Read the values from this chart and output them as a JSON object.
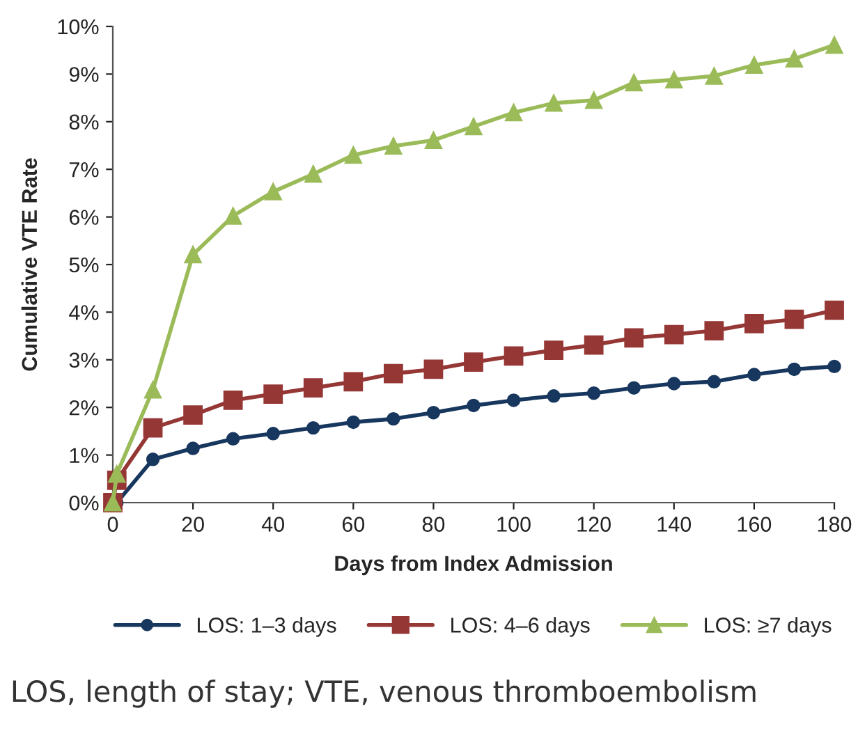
{
  "chart_data": {
    "type": "line",
    "xlabel": "Days from Index Admission",
    "ylabel": "Cumulative VTE Rate",
    "x": [
      0,
      1,
      10,
      20,
      30,
      40,
      50,
      60,
      70,
      80,
      90,
      100,
      110,
      120,
      130,
      140,
      150,
      160,
      170,
      180
    ],
    "series": [
      {
        "name": "LOS: 1–3 days",
        "color": "#17375e",
        "marker": "circle",
        "values": [
          0,
          0,
          0.91,
          1.14,
          1.34,
          1.45,
          1.57,
          1.69,
          1.76,
          1.89,
          2.04,
          2.15,
          2.24,
          2.3,
          2.41,
          2.5,
          2.54,
          2.69,
          2.8,
          2.86
        ]
      },
      {
        "name": "LOS: 4–6 days",
        "color": "#953735",
        "marker": "square",
        "values": [
          0,
          0.47,
          1.57,
          1.84,
          2.15,
          2.28,
          2.41,
          2.54,
          2.71,
          2.8,
          2.95,
          3.08,
          3.2,
          3.31,
          3.46,
          3.53,
          3.61,
          3.76,
          3.85,
          4.04
        ]
      },
      {
        "name": "LOS: ≥7 days",
        "color": "#9bbb59",
        "marker": "triangle",
        "values": [
          0,
          0.6,
          2.37,
          5.21,
          6.02,
          6.53,
          6.9,
          7.3,
          7.49,
          7.61,
          7.9,
          8.19,
          8.39,
          8.45,
          8.82,
          8.88,
          8.96,
          9.19,
          9.32,
          9.61
        ]
      }
    ],
    "xlim": [
      0,
      180
    ],
    "xticks": [
      0,
      20,
      40,
      60,
      80,
      100,
      120,
      140,
      160,
      180
    ],
    "ylim": [
      0,
      10
    ],
    "yticks": [
      {
        "value": 0,
        "label": "0%"
      },
      {
        "value": 1,
        "label": "1%"
      },
      {
        "value": 2,
        "label": "2%"
      },
      {
        "value": 3,
        "label": "3%"
      },
      {
        "value": 4,
        "label": "4%"
      },
      {
        "value": 5,
        "label": "5%"
      },
      {
        "value": 6,
        "label": "6%"
      },
      {
        "value": 7,
        "label": "7%"
      },
      {
        "value": 8,
        "label": "8%"
      },
      {
        "value": 9,
        "label": "9%"
      },
      {
        "value": 10,
        "label": "10%"
      }
    ],
    "grid": false,
    "legend": "bottom",
    "line_style": "solid",
    "annotations": [
      "LOS, length of stay; VTE, venous thromboembolism"
    ]
  }
}
